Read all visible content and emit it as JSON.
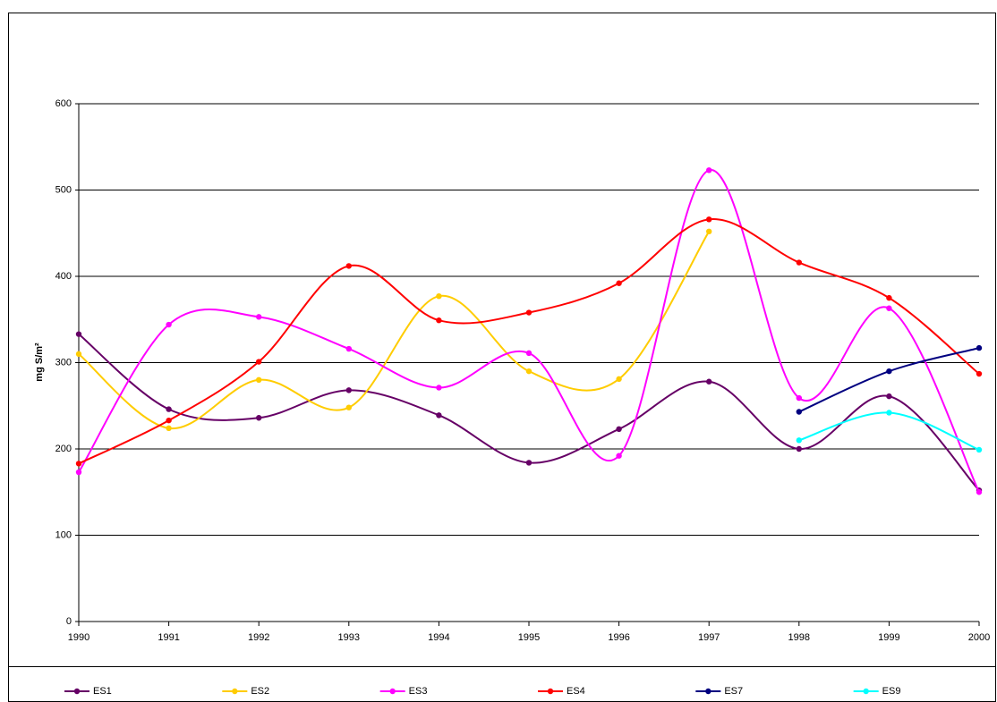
{
  "chart_data": {
    "type": "line",
    "y_label": "mg S/m²",
    "x": [
      1990,
      1991,
      1992,
      1993,
      1994,
      1995,
      1996,
      1997,
      1998,
      1999,
      2000
    ],
    "xlim": [
      1990,
      2000
    ],
    "xticks": [
      1990,
      1991,
      1992,
      1993,
      1994,
      1995,
      1996,
      1997,
      1998,
      1999,
      2000
    ],
    "ylim": [
      0,
      600
    ],
    "yticks": [
      0,
      100,
      200,
      300,
      400,
      500,
      600
    ],
    "grid": true,
    "smooth": true,
    "legend": "bottom",
    "series": [
      {
        "name": "ES1",
        "color": "#660066",
        "values": [
          333,
          246,
          236,
          268,
          239,
          184,
          223,
          278,
          200,
          261,
          152
        ]
      },
      {
        "name": "ES2",
        "color": "#ffcc00",
        "values": [
          310,
          224,
          280,
          248,
          377,
          290,
          281,
          452,
          null,
          null,
          null
        ]
      },
      {
        "name": "ES3",
        "color": "#ff00ff",
        "values": [
          173,
          344,
          353,
          316,
          271,
          311,
          192,
          523,
          259,
          363,
          150
        ]
      },
      {
        "name": "ES4",
        "color": "#ff0000",
        "values": [
          183,
          233,
          301,
          412,
          349,
          358,
          392,
          466,
          416,
          375,
          287
        ]
      },
      {
        "name": "ES7",
        "color": "#000080",
        "values": [
          null,
          null,
          null,
          null,
          null,
          null,
          null,
          null,
          243,
          290,
          317
        ]
      },
      {
        "name": "ES9",
        "color": "#00ffff",
        "values": [
          null,
          null,
          null,
          null,
          null,
          null,
          null,
          null,
          210,
          242,
          199
        ]
      }
    ]
  }
}
